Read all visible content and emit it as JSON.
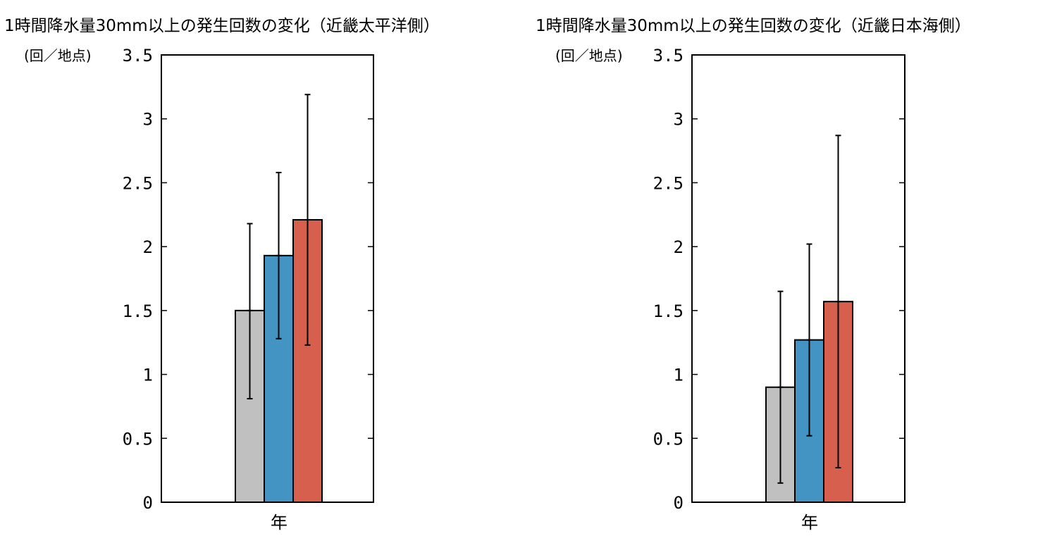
{
  "chart_data": [
    {
      "type": "bar",
      "title": "1時間降水量30mm以上の発生回数の変化（近畿太平洋側）",
      "ylabel": "(回／地点)",
      "categories": [
        "年"
      ],
      "ylim": [
        0,
        3.5
      ],
      "yticks": [
        "0",
        "0.5",
        "1",
        "1.5",
        "2",
        "2.5",
        "3",
        "3.5"
      ],
      "series": [
        {
          "color": "#c0c0c0",
          "values": [
            1.5
          ],
          "error_low": [
            0.81
          ],
          "error_high": [
            2.18
          ]
        },
        {
          "color": "#4393c3",
          "values": [
            1.93
          ],
          "error_low": [
            1.28
          ],
          "error_high": [
            2.58
          ]
        },
        {
          "color": "#d6604d",
          "values": [
            2.21
          ],
          "error_low": [
            1.23
          ],
          "error_high": [
            3.19
          ]
        }
      ]
    },
    {
      "type": "bar",
      "title": "1時間降水量30mm以上の発生回数の変化（近畿日本海側）",
      "ylabel": "(回／地点)",
      "categories": [
        "年"
      ],
      "ylim": [
        0,
        3.5
      ],
      "yticks": [
        "0",
        "0.5",
        "1",
        "1.5",
        "2",
        "2.5",
        "3",
        "3.5"
      ],
      "series": [
        {
          "color": "#c0c0c0",
          "values": [
            0.9
          ],
          "error_low": [
            0.15
          ],
          "error_high": [
            1.65
          ]
        },
        {
          "color": "#4393c3",
          "values": [
            1.27
          ],
          "error_low": [
            0.52
          ],
          "error_high": [
            2.02
          ]
        },
        {
          "color": "#d6604d",
          "values": [
            1.57
          ],
          "error_low": [
            0.27
          ],
          "error_high": [
            2.87
          ]
        }
      ]
    }
  ]
}
